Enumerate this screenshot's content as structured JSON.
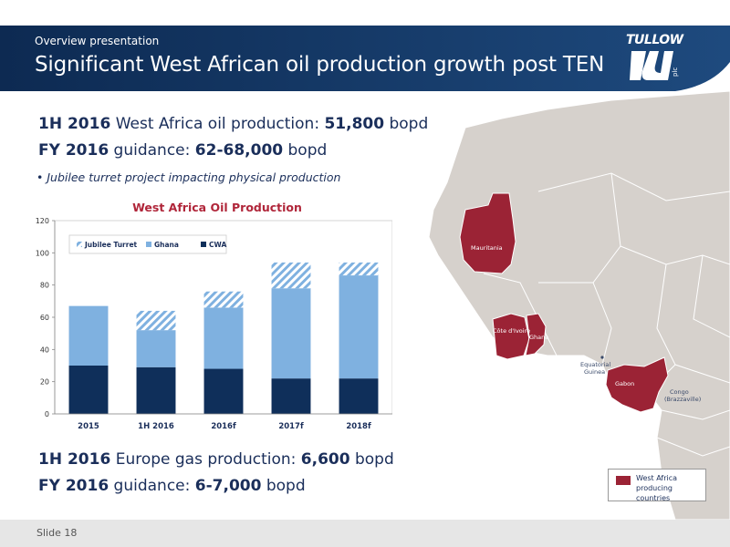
{
  "header": {
    "subtitle": "Overview presentation",
    "title": "Significant West African oil production growth post TEN",
    "logo_text": "TULLOW",
    "logo_small": "plc"
  },
  "main": {
    "line1": {
      "bold1": "1H 2016",
      "text1": " West Africa oil production: ",
      "bold2": "51,800",
      "text2": " bopd"
    },
    "line2": {
      "bold1": "FY 2016",
      "text1": " guidance: ",
      "bold2": "62-68,000",
      "text2": " bopd"
    },
    "bullet": "Jubilee turret project impacting physical production",
    "line3": {
      "bold1": "1H 2016",
      "text1": " Europe gas production: ",
      "bold2": "6,600",
      "text2": " bopd"
    },
    "line4": {
      "bold1": "FY 2016",
      "text1": " guidance: ",
      "bold2": "6-7,000",
      "text2": " bopd"
    }
  },
  "colors": {
    "navy": "#11325f",
    "ghana": "#7fb1e0",
    "cwa": "#0f2f5a",
    "map_highlight": "#9b2335",
    "map_land": "#d6d1cc",
    "sea": "#ffffff"
  },
  "chart_data": {
    "type": "bar",
    "title": "West Africa Oil Production",
    "categories": [
      "2015",
      "1H 2016",
      "2016f",
      "2017f",
      "2018f"
    ],
    "series": [
      {
        "name": "CWA",
        "values": [
          30,
          29,
          28,
          22,
          22
        ]
      },
      {
        "name": "Ghana",
        "values": [
          37,
          23,
          38,
          56,
          64
        ]
      },
      {
        "name": "Jubilee Turret",
        "values": [
          0,
          12,
          10,
          16,
          8
        ]
      }
    ],
    "stacked": true,
    "ylim": [
      0,
      120
    ],
    "yticks": [
      "0",
      "20",
      "40",
      "60",
      "80",
      "100",
      "120"
    ],
    "legend": [
      "Jubilee Turret",
      "Ghana",
      "CWA"
    ],
    "legend_position": "top-left",
    "grid": false
  },
  "map": {
    "labels": {
      "mauritania": "Mauritania",
      "cote": "Côte d'Ivoire",
      "ghana": "Ghana",
      "eq1": "Equatorial",
      "eq2": "Guinea",
      "gabon": "Gabon",
      "congo1": "Congo",
      "congo2": "(Brazzaville)"
    },
    "legend": "West Africa producing countries"
  },
  "footer": {
    "slide": "Slide 18"
  }
}
